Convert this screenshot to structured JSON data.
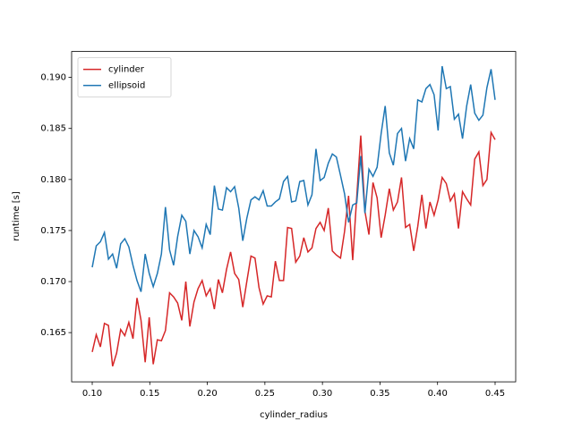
{
  "chart_data": {
    "type": "line",
    "xlabel": "cylinder_radius",
    "ylabel": "runtime [s]",
    "x": [
      0.1,
      0.1035,
      0.1071,
      0.1106,
      0.1141,
      0.1177,
      0.1212,
      0.1247,
      0.1283,
      0.1318,
      0.1354,
      0.1389,
      0.1424,
      0.146,
      0.1495,
      0.153,
      0.1566,
      0.1601,
      0.1636,
      0.1672,
      0.1707,
      0.1742,
      0.1778,
      0.1813,
      0.1848,
      0.1884,
      0.1919,
      0.1955,
      0.199,
      0.2025,
      0.2061,
      0.2096,
      0.2131,
      0.2167,
      0.2202,
      0.2237,
      0.2273,
      0.2308,
      0.2343,
      0.2379,
      0.2414,
      0.2449,
      0.2485,
      0.252,
      0.2556,
      0.2591,
      0.2626,
      0.2662,
      0.2697,
      0.2732,
      0.2768,
      0.2803,
      0.2838,
      0.2874,
      0.2909,
      0.2944,
      0.298,
      0.3015,
      0.3051,
      0.3086,
      0.3121,
      0.3157,
      0.3192,
      0.3227,
      0.3263,
      0.3298,
      0.3333,
      0.3369,
      0.3404,
      0.3439,
      0.3475,
      0.351,
      0.3545,
      0.3581,
      0.3616,
      0.3652,
      0.3687,
      0.3722,
      0.3758,
      0.3793,
      0.3828,
      0.3864,
      0.3899,
      0.3934,
      0.397,
      0.4005,
      0.404,
      0.4076,
      0.4111,
      0.4146,
      0.4182,
      0.4217,
      0.4253,
      0.4288,
      0.4323,
      0.4359,
      0.4394,
      0.4429,
      0.4465,
      0.45
    ],
    "series": [
      {
        "name": "cylinder",
        "color": "#d62728",
        "values": [
          0.1631,
          0.1648,
          0.1636,
          0.1659,
          0.1657,
          0.1617,
          0.163,
          0.1653,
          0.1647,
          0.166,
          0.1644,
          0.1684,
          0.1662,
          0.1621,
          0.1665,
          0.1619,
          0.1643,
          0.1642,
          0.1652,
          0.1689,
          0.1685,
          0.1679,
          0.1662,
          0.17,
          0.1656,
          0.168,
          0.1693,
          0.1701,
          0.1686,
          0.1693,
          0.1673,
          0.1702,
          0.1689,
          0.1712,
          0.1729,
          0.1708,
          0.1702,
          0.1675,
          0.17,
          0.1725,
          0.1723,
          0.1694,
          0.1678,
          0.1686,
          0.1685,
          0.172,
          0.1701,
          0.1701,
          0.1753,
          0.1752,
          0.1719,
          0.1725,
          0.1743,
          0.1729,
          0.1733,
          0.1752,
          0.1758,
          0.175,
          0.1772,
          0.173,
          0.1726,
          0.1723,
          0.1749,
          0.1784,
          0.1721,
          0.1783,
          0.1843,
          0.1769,
          0.1746,
          0.1797,
          0.1782,
          0.1743,
          0.1765,
          0.1791,
          0.177,
          0.1778,
          0.1802,
          0.1753,
          0.1756,
          0.173,
          0.1754,
          0.1785,
          0.1752,
          0.1778,
          0.1765,
          0.178,
          0.1802,
          0.1796,
          0.1779,
          0.1786,
          0.1752,
          0.1788,
          0.1781,
          0.1775,
          0.182,
          0.1827,
          0.1794,
          0.18,
          0.1846,
          0.1839
        ]
      },
      {
        "name": "ellipsoid",
        "color": "#1f77b4",
        "values": [
          0.1714,
          0.1735,
          0.1739,
          0.1748,
          0.1722,
          0.1727,
          0.1713,
          0.1737,
          0.1742,
          0.1734,
          0.1716,
          0.1701,
          0.169,
          0.1727,
          0.1708,
          0.1695,
          0.1708,
          0.1727,
          0.1773,
          0.1731,
          0.1716,
          0.1744,
          0.1765,
          0.1759,
          0.1727,
          0.175,
          0.1744,
          0.1733,
          0.1756,
          0.1746,
          0.1794,
          0.1771,
          0.177,
          0.1792,
          0.1788,
          0.1793,
          0.1772,
          0.174,
          0.1762,
          0.178,
          0.1783,
          0.178,
          0.1789,
          0.1774,
          0.1774,
          0.1778,
          0.1781,
          0.1798,
          0.1803,
          0.1778,
          0.1779,
          0.1798,
          0.1799,
          0.1775,
          0.1785,
          0.183,
          0.1799,
          0.1802,
          0.1816,
          0.1825,
          0.1822,
          0.1804,
          0.1786,
          0.1758,
          0.1775,
          0.1777,
          0.1823,
          0.1767,
          0.181,
          0.1803,
          0.1812,
          0.1845,
          0.1872,
          0.1826,
          0.1814,
          0.1845,
          0.185,
          0.1818,
          0.184,
          0.183,
          0.1878,
          0.1876,
          0.1889,
          0.1893,
          0.1883,
          0.1848,
          0.1911,
          0.1889,
          0.1891,
          0.1859,
          0.1864,
          0.184,
          0.1872,
          0.1893,
          0.1865,
          0.1858,
          0.1863,
          0.189,
          0.1908,
          0.1878
        ]
      }
    ],
    "xlim": [
      0.0821,
      0.4679
    ],
    "ylim": [
      0.16018,
      0.19254
    ],
    "xticks": [
      {
        "value": 0.1,
        "label": "0.10"
      },
      {
        "value": 0.15,
        "label": "0.15"
      },
      {
        "value": 0.2,
        "label": "0.20"
      },
      {
        "value": 0.25,
        "label": "0.25"
      },
      {
        "value": 0.3,
        "label": "0.30"
      },
      {
        "value": 0.35,
        "label": "0.35"
      },
      {
        "value": 0.4,
        "label": "0.40"
      },
      {
        "value": 0.45,
        "label": "0.45"
      }
    ],
    "yticks": [
      {
        "value": 0.165,
        "label": "0.165"
      },
      {
        "value": 0.17,
        "label": "0.170"
      },
      {
        "value": 0.175,
        "label": "0.175"
      },
      {
        "value": 0.18,
        "label": "0.180"
      },
      {
        "value": 0.185,
        "label": "0.185"
      },
      {
        "value": 0.19,
        "label": "0.190"
      }
    ],
    "legend": "upper left"
  }
}
